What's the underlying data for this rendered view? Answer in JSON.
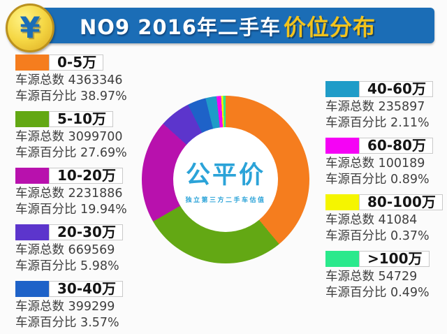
{
  "header": {
    "title_prefix": "NO9 2016年二手车",
    "title_highlight": "价位分布",
    "coin_symbol": "¥",
    "bar_color": "#1b6db6",
    "highlight_color": "#f2c31c"
  },
  "center_logo": {
    "name": "公平价",
    "tagline": "独立第三方二手车估值",
    "color": "#2ba3d8"
  },
  "labels": {
    "total_label": "车源总数",
    "percent_label": "车源百分比"
  },
  "chart_data": {
    "type": "pie",
    "donut": true,
    "title": "NO9 2016年二手车价位分布",
    "start_angle_deg": 0,
    "direction": "clockwise",
    "segments": [
      {
        "label": "0-5万",
        "total": 4363346,
        "percent": 38.97,
        "color": "#f57d1e"
      },
      {
        "label": "5-10万",
        "total": 3099700,
        "percent": 27.69,
        "color": "#63a814"
      },
      {
        "label": "10-20万",
        "total": 2231886,
        "percent": 19.94,
        "color": "#b811ad"
      },
      {
        "label": "20-30万",
        "total": 669569,
        "percent": 5.98,
        "color": "#5c35cc"
      },
      {
        "label": "30-40万",
        "total": 399299,
        "percent": 3.57,
        "color": "#1e62c8"
      },
      {
        "label": "40-60万",
        "total": 235897,
        "percent": 2.11,
        "color": "#1f9cc8"
      },
      {
        "label": "60-80万",
        "total": 100189,
        "percent": 0.89,
        "color": "#f503f5"
      },
      {
        "label": "80-100万",
        "total": 41084,
        "percent": 0.37,
        "color": "#f5f500"
      },
      {
        "label": ">100万",
        "total": 54729,
        "percent": 0.49,
        "color": "#2ae98c"
      }
    ]
  },
  "legend": {
    "left_indices": [
      0,
      1,
      2,
      3,
      4
    ],
    "right_indices": [
      5,
      6,
      7,
      8
    ]
  }
}
